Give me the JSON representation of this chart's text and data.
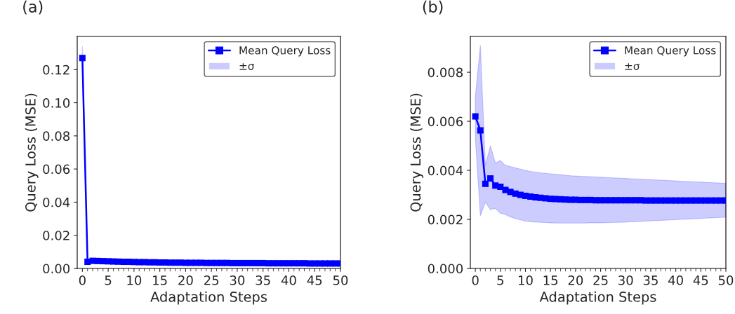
{
  "chart_data": [
    {
      "type": "line",
      "title": "(a)",
      "xlabel": "Adaptation Steps",
      "ylabel": "Query Loss (MSE)",
      "annotations": [
        "±σ"
      ],
      "x": [
        0,
        1,
        2,
        3,
        4,
        5,
        6,
        7,
        8,
        9,
        10,
        11,
        12,
        13,
        14,
        15,
        16,
        17,
        18,
        19,
        20,
        21,
        22,
        23,
        24,
        25,
        26,
        27,
        28,
        29,
        30,
        31,
        32,
        33,
        34,
        35,
        36,
        37,
        38,
        39,
        40,
        41,
        42,
        43,
        44,
        45,
        46,
        47,
        48,
        49,
        50
      ],
      "series": [
        {
          "name": "Mean Query Loss",
          "color": "#0000ff",
          "values": [
            0.127,
            0.004,
            0.0046,
            0.0045,
            0.0044,
            0.0043,
            0.0042,
            0.0041,
            0.004,
            0.004,
            0.0039,
            0.0038,
            0.0038,
            0.0037,
            0.0037,
            0.0036,
            0.0036,
            0.0035,
            0.0035,
            0.0035,
            0.0034,
            0.0034,
            0.0034,
            0.0034,
            0.0033,
            0.0033,
            0.0033,
            0.0033,
            0.0033,
            0.0032,
            0.0032,
            0.0032,
            0.0032,
            0.0032,
            0.0032,
            0.0032,
            0.0031,
            0.0031,
            0.0031,
            0.0031,
            0.0031,
            0.0031,
            0.0031,
            0.0031,
            0.003,
            0.003,
            0.003,
            0.003,
            0.003,
            0.003,
            0.003
          ],
          "lower": [
            0.12,
            0.0035,
            0.0041,
            0.004,
            0.0039,
            0.0038,
            0.0037,
            0.0036,
            0.0035,
            0.0035,
            0.0034,
            0.0033,
            0.0033,
            0.0032,
            0.0032,
            0.0031,
            0.0031,
            0.003,
            0.003,
            0.003,
            0.0029,
            0.0029,
            0.0029,
            0.0029,
            0.0028,
            0.0028,
            0.0028,
            0.0028,
            0.0028,
            0.0027,
            0.0027,
            0.0027,
            0.0027,
            0.0027,
            0.0027,
            0.0027,
            0.0026,
            0.0026,
            0.0026,
            0.0026,
            0.0026,
            0.0026,
            0.0026,
            0.0026,
            0.0025,
            0.0025,
            0.0025,
            0.0025,
            0.0025,
            0.0025,
            0.0025
          ],
          "upper": [
            0.134,
            0.0045,
            0.0051,
            0.005,
            0.0049,
            0.0048,
            0.0047,
            0.0046,
            0.0045,
            0.0045,
            0.0044,
            0.0043,
            0.0043,
            0.0042,
            0.0042,
            0.0041,
            0.0041,
            0.004,
            0.004,
            0.004,
            0.0039,
            0.0039,
            0.0039,
            0.0039,
            0.0038,
            0.0038,
            0.0038,
            0.0038,
            0.0038,
            0.0037,
            0.0037,
            0.0037,
            0.0037,
            0.0037,
            0.0037,
            0.0037,
            0.0036,
            0.0036,
            0.0036,
            0.0036,
            0.0036,
            0.0036,
            0.0036,
            0.0036,
            0.0035,
            0.0035,
            0.0035,
            0.0035,
            0.0035,
            0.0035,
            0.0035
          ]
        }
      ],
      "xlim": [
        -1,
        50
      ],
      "xticks": [
        0,
        5,
        10,
        15,
        20,
        25,
        30,
        35,
        40,
        45,
        50
      ],
      "ylim": [
        0,
        0.14
      ],
      "yticks": [
        {
          "value": 0,
          "label": "0.00"
        },
        {
          "value": 0.02,
          "label": "0.02"
        },
        {
          "value": 0.04,
          "label": "0.04"
        },
        {
          "value": 0.06,
          "label": "0.06"
        },
        {
          "value": 0.08,
          "label": "0.08"
        },
        {
          "value": 0.1,
          "label": "0.10"
        },
        {
          "value": 0.12,
          "label": "0.12"
        }
      ],
      "marker": "square",
      "line_style": "solid",
      "legend": "top right",
      "grid": false
    },
    {
      "type": "line",
      "title": "(b)",
      "xlabel": "Adaptation Steps",
      "ylabel": "Query Loss (MSE)",
      "annotations": [
        "±σ"
      ],
      "x": [
        0,
        1,
        2,
        3,
        4,
        5,
        6,
        7,
        8,
        9,
        10,
        11,
        12,
        13,
        14,
        15,
        16,
        17,
        18,
        19,
        20,
        21,
        22,
        23,
        24,
        25,
        26,
        27,
        28,
        29,
        30,
        31,
        32,
        33,
        34,
        35,
        36,
        37,
        38,
        39,
        40,
        41,
        42,
        43,
        44,
        45,
        46,
        47,
        48,
        49,
        50
      ],
      "series": [
        {
          "name": "Mean Query Loss",
          "color": "#0000ff",
          "values": [
            0.0062,
            0.00563,
            0.00345,
            0.00367,
            0.00338,
            0.00333,
            0.0032,
            0.00312,
            0.00305,
            0.003,
            0.00296,
            0.00293,
            0.0029,
            0.00288,
            0.00286,
            0.00284,
            0.00283,
            0.00282,
            0.00281,
            0.0028,
            0.0028,
            0.00279,
            0.00279,
            0.00279,
            0.00278,
            0.00278,
            0.00278,
            0.00278,
            0.00278,
            0.00278,
            0.00278,
            0.00278,
            0.00278,
            0.00278,
            0.00277,
            0.00277,
            0.00277,
            0.00277,
            0.00277,
            0.00277,
            0.00277,
            0.00277,
            0.00277,
            0.00277,
            0.00277,
            0.00277,
            0.00277,
            0.00277,
            0.00277,
            0.00277,
            0.00277
          ],
          "lower": [
            0.0053,
            0.00215,
            0.0027,
            0.0024,
            0.00245,
            0.00225,
            0.0022,
            0.0021,
            0.00203,
            0.00198,
            0.00193,
            0.00191,
            0.00189,
            0.00188,
            0.00187,
            0.00186,
            0.00185,
            0.00185,
            0.00185,
            0.00185,
            0.00185,
            0.00185,
            0.00185,
            0.00186,
            0.00186,
            0.00186,
            0.00187,
            0.00187,
            0.00188,
            0.00188,
            0.00189,
            0.0019,
            0.00191,
            0.00192,
            0.00193,
            0.00194,
            0.00195,
            0.00196,
            0.00197,
            0.00198,
            0.00199,
            0.002,
            0.00201,
            0.00202,
            0.00203,
            0.00204,
            0.00205,
            0.00206,
            0.00207,
            0.00208,
            0.00209
          ],
          "upper": [
            0.007,
            0.0091,
            0.0042,
            0.005,
            0.0043,
            0.0044,
            0.0042,
            0.00415,
            0.0041,
            0.00405,
            0.004,
            0.00396,
            0.00393,
            0.0039,
            0.00388,
            0.00386,
            0.00384,
            0.00382,
            0.0038,
            0.00378,
            0.00377,
            0.00376,
            0.00375,
            0.00374,
            0.00373,
            0.00372,
            0.00371,
            0.0037,
            0.00369,
            0.00368,
            0.00367,
            0.00366,
            0.00365,
            0.00364,
            0.00363,
            0.00362,
            0.00361,
            0.0036,
            0.00359,
            0.00358,
            0.00357,
            0.00356,
            0.00355,
            0.00354,
            0.00353,
            0.00352,
            0.00351,
            0.0035,
            0.00349,
            0.00348,
            0.00347
          ]
        }
      ],
      "xlim": [
        -1,
        50
      ],
      "xticks": [
        0,
        5,
        10,
        15,
        20,
        25,
        30,
        35,
        40,
        45,
        50
      ],
      "ylim": [
        0,
        0.00946
      ],
      "yticks": [
        {
          "value": 0,
          "label": "0.000"
        },
        {
          "value": 0.002,
          "label": "0.002"
        },
        {
          "value": 0.004,
          "label": "0.004"
        },
        {
          "value": 0.006,
          "label": "0.006"
        },
        {
          "value": 0.008,
          "label": "0.008"
        }
      ],
      "marker": "square",
      "line_style": "solid",
      "legend": "top right",
      "grid": false
    }
  ]
}
